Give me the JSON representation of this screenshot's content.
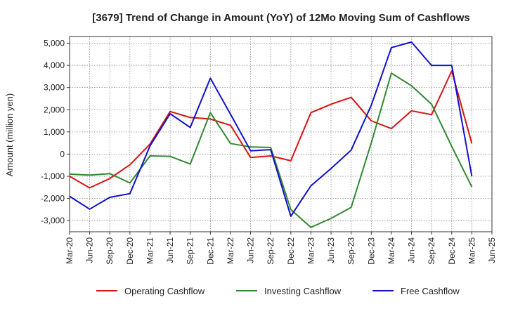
{
  "chart_data": {
    "type": "line",
    "title": "[3679]  Trend of Change in Amount (YoY) of 12Mo Moving Sum of Cashflows",
    "xlabel": "",
    "ylabel": "Amount (million yen)",
    "ylim": [
      -3500,
      5300
    ],
    "yticks": [
      5000,
      4000,
      3000,
      2000,
      1000,
      0,
      -1000,
      -2000,
      -3000
    ],
    "ytick_labels": [
      "5,000",
      "4,000",
      "3,000",
      "2,000",
      "1,000",
      "0",
      "-1,000",
      "-2,000",
      "-3,000"
    ],
    "categories": [
      "Mar-20",
      "Jun-20",
      "Sep-20",
      "Dec-20",
      "Mar-21",
      "Jun-21",
      "Sep-21",
      "Dec-21",
      "Mar-22",
      "Jun-22",
      "Sep-22",
      "Dec-22",
      "Mar-23",
      "Jun-23",
      "Sep-23",
      "Dec-23",
      "Mar-24",
      "Jun-24",
      "Sep-24",
      "Dec-24",
      "Mar-25",
      "Jun-25"
    ],
    "grid": true,
    "legend_position": "bottom",
    "series": [
      {
        "name": "Operating Cashflow",
        "color": "#dd1111",
        "values": [
          -1000,
          -1520,
          -1100,
          -480,
          450,
          1920,
          1650,
          1580,
          1300,
          -150,
          -80,
          -300,
          1870,
          2250,
          2560,
          1500,
          1150,
          1950,
          1780,
          3750,
          480,
          null
        ]
      },
      {
        "name": "Investing Cashflow",
        "color": "#338833",
        "values": [
          -900,
          -950,
          -880,
          -1300,
          -80,
          -100,
          -450,
          1870,
          480,
          320,
          300,
          -2500,
          -3300,
          -2900,
          -2400,
          500,
          3650,
          3080,
          2250,
          350,
          -1480,
          null
        ]
      },
      {
        "name": "Free Cashflow",
        "color": "#1111cc",
        "values": [
          -1900,
          -2480,
          -1950,
          -1780,
          370,
          1820,
          1200,
          3420,
          1800,
          150,
          200,
          -2800,
          -1430,
          -650,
          180,
          2200,
          4800,
          5050,
          4000,
          4000,
          -1000,
          null
        ]
      }
    ]
  }
}
